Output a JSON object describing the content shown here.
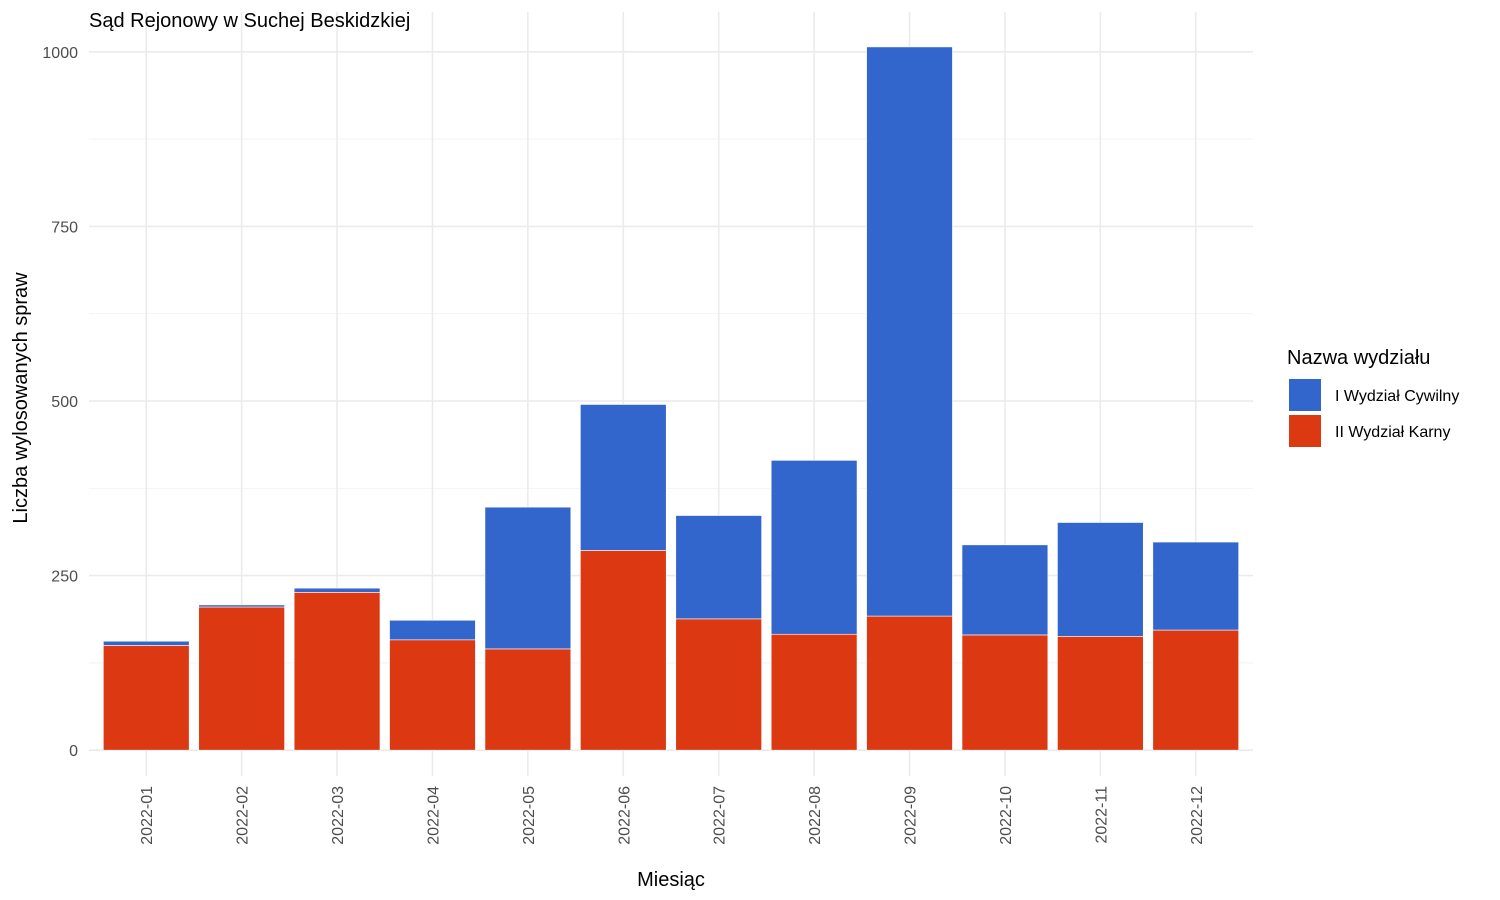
{
  "chart_data": {
    "type": "bar",
    "stacked": true,
    "title": "Sąd Rejonowy w Suchej Beskidzkiej",
    "xlabel": "Miesiąc",
    "ylabel": "Liczba wylosowanych spraw",
    "ylim": [
      -37,
      1057
    ],
    "yticks": [
      0,
      250,
      500,
      750,
      1000
    ],
    "grid": true,
    "legend_position": "right",
    "legend_title": "Nazwa wydziału",
    "categories": [
      "2022-01",
      "2022-02",
      "2022-03",
      "2022-04",
      "2022-05",
      "2022-06",
      "2022-07",
      "2022-08",
      "2022-09",
      "2022-10",
      "2022-11",
      "2022-12"
    ],
    "series": [
      {
        "name": "II Wydział Karny",
        "color": "#DC3912",
        "values": [
          150,
          205,
          226,
          158,
          145,
          286,
          188,
          166,
          192,
          165,
          163,
          172
        ]
      },
      {
        "name": "I Wydział Cywilny",
        "color": "#3366CC",
        "values": [
          6,
          3,
          6,
          28,
          203,
          209,
          148,
          249,
          815,
          129,
          163,
          126
        ]
      }
    ],
    "legend_order": [
      "I Wydział Cywilny",
      "II Wydział Karny"
    ]
  }
}
